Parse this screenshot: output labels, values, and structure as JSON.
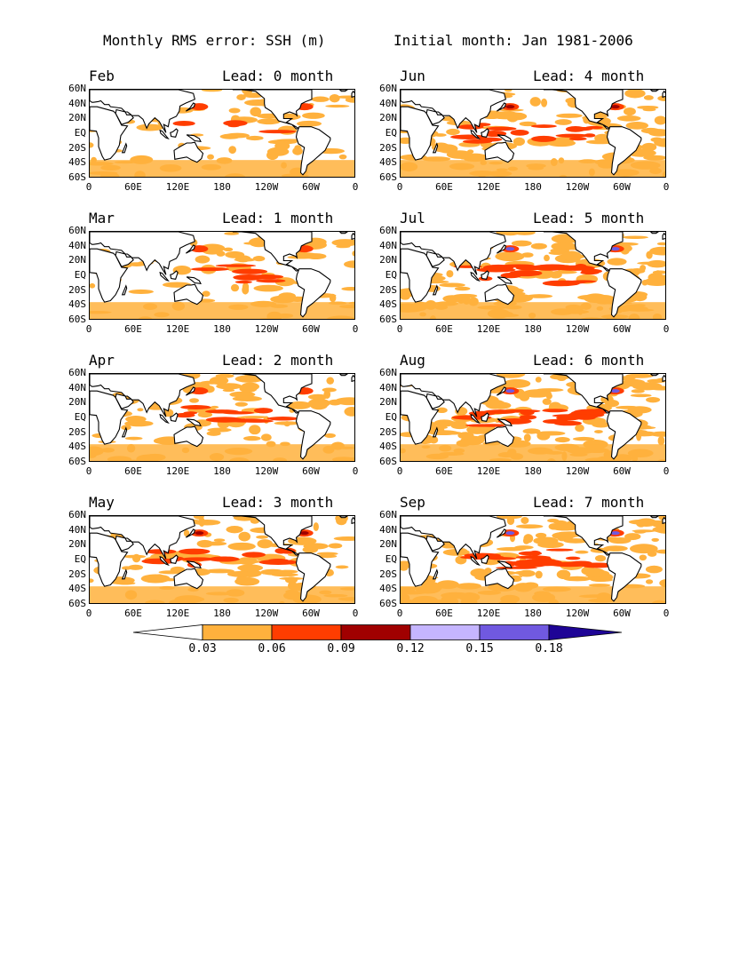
{
  "header": {
    "title_left": "Monthly RMS error: SSH (m)",
    "title_right": "Initial month: Jan 1981-2006"
  },
  "panels": [
    {
      "month": "Feb",
      "lead": "Lead: 0 month"
    },
    {
      "month": "Mar",
      "lead": "Lead: 1 month"
    },
    {
      "month": "Apr",
      "lead": "Lead: 2 month"
    },
    {
      "month": "May",
      "lead": "Lead: 3 month"
    },
    {
      "month": "Jun",
      "lead": "Lead: 4 month"
    },
    {
      "month": "Jul",
      "lead": "Lead: 5 month"
    },
    {
      "month": "Aug",
      "lead": "Lead: 6 month"
    },
    {
      "month": "Sep",
      "lead": "Lead: 7 month"
    }
  ],
  "axes": {
    "lat_ticks": [
      "60N",
      "40N",
      "20N",
      "EQ",
      "20S",
      "40S",
      "60S"
    ],
    "lon_ticks": [
      "0",
      "60E",
      "120E",
      "180",
      "120W",
      "60W",
      "0"
    ]
  },
  "colorbar": {
    "labels": [
      "0.03",
      "0.06",
      "0.09",
      "0.12",
      "0.15",
      "0.18"
    ],
    "colors": [
      "#ffffff",
      "#ffb13d",
      "#ff3d00",
      "#a00000",
      "#c5b5ff",
      "#7059e0",
      "#1e0496"
    ]
  }
}
